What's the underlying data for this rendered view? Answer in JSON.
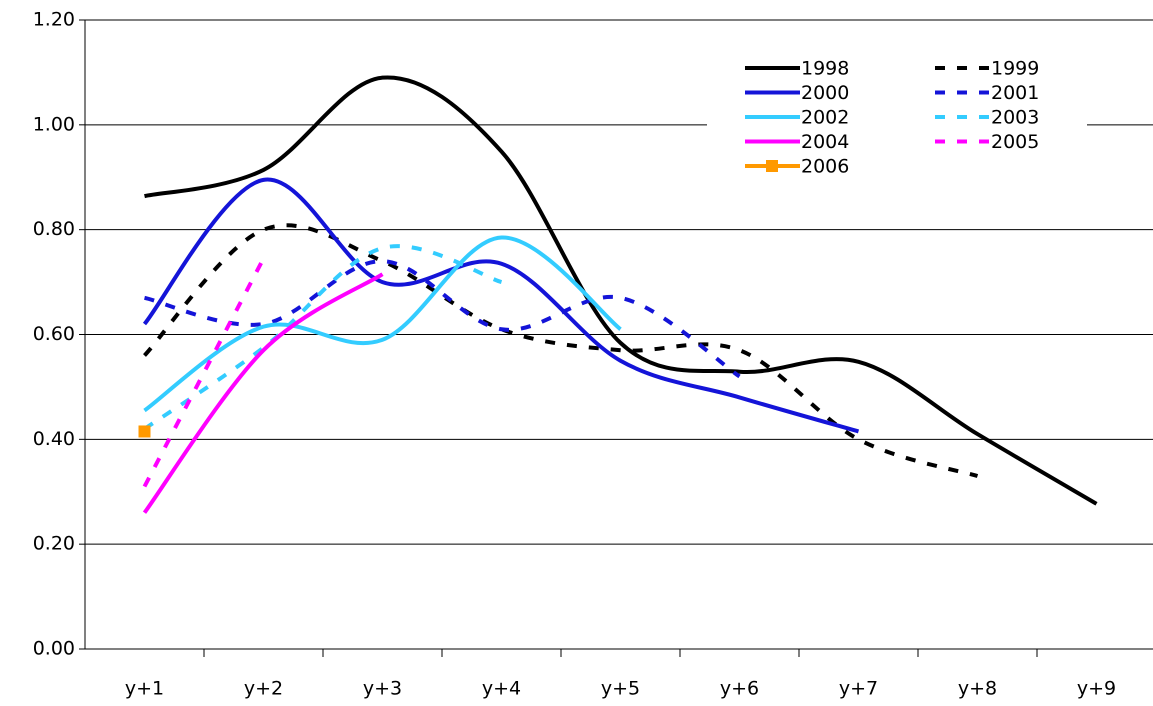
{
  "chart_data": {
    "type": "line",
    "categories": [
      "y+1",
      "y+2",
      "y+3",
      "y+4",
      "y+5",
      "y+6",
      "y+7",
      "y+8",
      "y+9"
    ],
    "series": [
      {
        "name": "1998",
        "color": "#000000",
        "dashed": false,
        "values": [
          0.864,
          0.914,
          1.09,
          0.949,
          0.584,
          0.529,
          0.548,
          0.41,
          0.277
        ]
      },
      {
        "name": "1999",
        "color": "#000000",
        "dashed": true,
        "values": [
          0.56,
          0.8,
          0.74,
          0.61,
          0.57,
          0.57,
          0.4,
          0.33,
          null
        ]
      },
      {
        "name": "2000",
        "color": "#1414d8",
        "dashed": false,
        "values": [
          0.62,
          0.895,
          0.7,
          0.735,
          0.55,
          0.48,
          0.415,
          null,
          null
        ]
      },
      {
        "name": "2001",
        "color": "#1414d8",
        "dashed": true,
        "values": [
          0.67,
          0.62,
          0.74,
          0.61,
          0.67,
          0.52,
          null,
          null,
          null
        ]
      },
      {
        "name": "2002",
        "color": "#33ccff",
        "dashed": false,
        "values": [
          0.455,
          0.615,
          0.59,
          0.785,
          0.61,
          null,
          null,
          null,
          null
        ]
      },
      {
        "name": "2003",
        "color": "#33ccff",
        "dashed": true,
        "values": [
          0.42,
          0.575,
          0.765,
          0.7,
          null,
          null,
          null,
          null,
          null
        ]
      },
      {
        "name": "2004",
        "color": "#ff00ff",
        "dashed": false,
        "values": [
          0.26,
          0.57,
          0.715,
          null,
          null,
          null,
          null,
          null,
          null
        ]
      },
      {
        "name": "2005",
        "color": "#ff00ff",
        "dashed": true,
        "values": [
          0.31,
          0.745,
          null,
          null,
          null,
          null,
          null,
          null,
          null
        ]
      },
      {
        "name": "2006",
        "color": "#ff9900",
        "dashed": false,
        "marker": "square",
        "values": [
          0.415,
          null,
          null,
          null,
          null,
          null,
          null,
          null,
          null
        ]
      }
    ],
    "ylim": [
      0,
      1.2
    ],
    "yticks": [
      {
        "value": 0,
        "label": "0.00"
      },
      {
        "value": 0.2,
        "label": "0.20"
      },
      {
        "value": 0.4,
        "label": "0.40"
      },
      {
        "value": 0.6,
        "label": "0.60"
      },
      {
        "value": 0.8,
        "label": "0.80"
      },
      {
        "value": 1.0,
        "label": "1.00"
      },
      {
        "value": 1.2,
        "label": "1.20"
      }
    ],
    "grid": true,
    "legend": "upper right",
    "smooth": true
  }
}
